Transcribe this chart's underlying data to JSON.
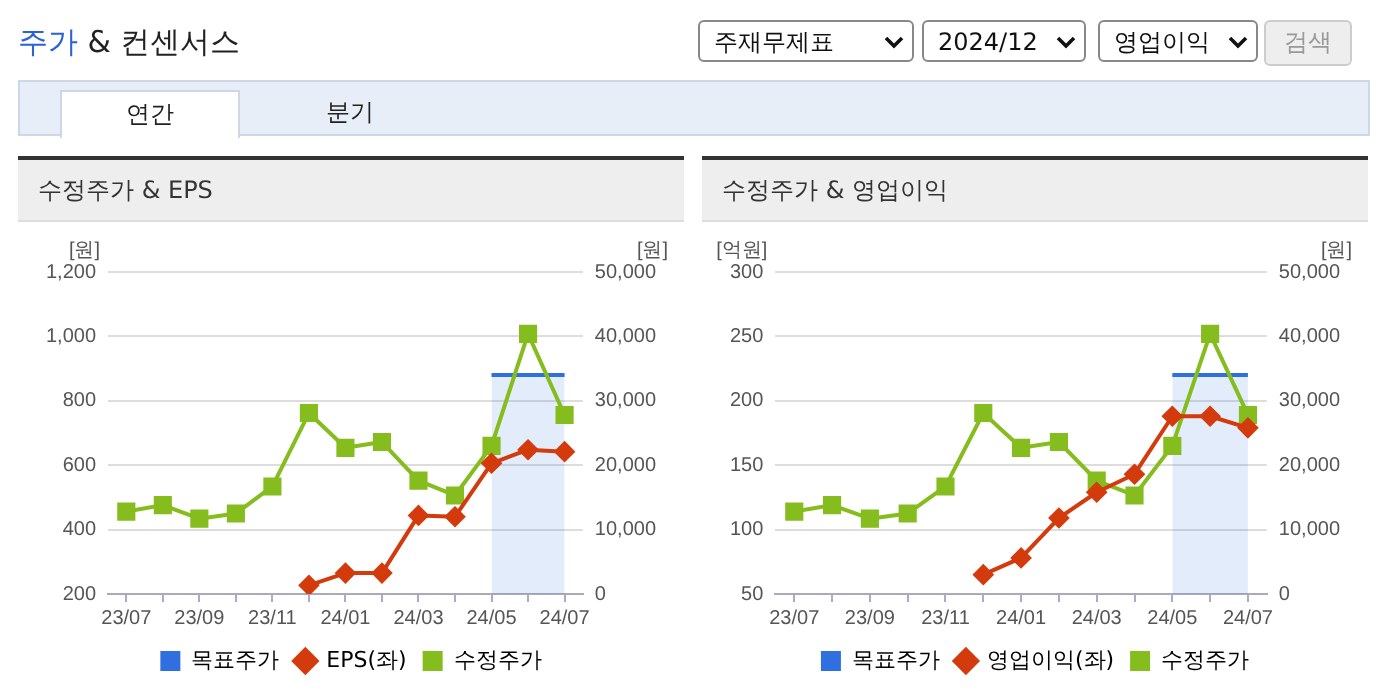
{
  "chart_data": [
    {
      "type": "other",
      "title": "주가 & 컨센서스",
      "annotations": [
        "주재무제표",
        "2024/12",
        "영업이익",
        "검색",
        "연간",
        "분기"
      ]
    },
    {
      "type": "line",
      "title": "수정주가 & EPS",
      "categories": [
        "23/07",
        null,
        "23/09",
        null,
        "23/11",
        null,
        "24/01",
        null,
        "24/03",
        null,
        "24/05",
        null,
        "24/07"
      ],
      "ylabel": "[원]",
      "y2label": "[원]",
      "ylim": [
        200,
        1200
      ],
      "yticks": [
        200,
        400,
        600,
        800,
        {
          "value": 1000,
          "label": "1,000"
        },
        {
          "value": 1200,
          "label": "1,200"
        }
      ],
      "y2lim": [
        0,
        50000
      ],
      "y2ticks": [
        0,
        {
          "value": 10000,
          "label": "10,000"
        },
        {
          "value": 20000,
          "label": "20,000"
        },
        {
          "value": 30000,
          "label": "30,000"
        },
        {
          "value": 40000,
          "label": "40,000"
        },
        {
          "value": 50000,
          "label": "50,000"
        }
      ],
      "grid": "y",
      "legend": "bottom",
      "series": [
        {
          "name": "목표주가",
          "type": "area",
          "axis": "y2",
          "color": "#2f6fdf",
          "values": [
            null,
            null,
            null,
            null,
            null,
            null,
            null,
            null,
            null,
            null,
            34000,
            34000,
            34000
          ]
        },
        {
          "name": "EPS(좌)",
          "type": "line",
          "color": "#d33a0c",
          "marker": "diamond",
          "values": [
            null,
            null,
            null,
            null,
            null,
            227,
            265,
            265,
            444,
            440,
            606,
            648,
            642
          ]
        },
        {
          "name": "수정주가",
          "type": "line",
          "axis": "y2",
          "color": "#86bd1e",
          "marker": "square",
          "values": [
            12800,
            13800,
            11700,
            12500,
            16700,
            28100,
            22700,
            23600,
            17600,
            15300,
            23000,
            40400,
            27800
          ]
        }
      ]
    },
    {
      "type": "line",
      "title": "수정주가 & 영업이익",
      "categories": [
        "23/07",
        null,
        "23/09",
        null,
        "23/11",
        null,
        "24/01",
        null,
        "24/03",
        null,
        "24/05",
        null,
        "24/07"
      ],
      "ylabel": "[억원]",
      "y2label": "[원]",
      "ylim": [
        50,
        300
      ],
      "yticks": [
        50,
        100,
        150,
        200,
        250,
        300
      ],
      "y2lim": [
        0,
        50000
      ],
      "y2ticks": [
        0,
        {
          "value": 10000,
          "label": "10,000"
        },
        {
          "value": 20000,
          "label": "20,000"
        },
        {
          "value": 30000,
          "label": "30,000"
        },
        {
          "value": 40000,
          "label": "40,000"
        },
        {
          "value": 50000,
          "label": "50,000"
        }
      ],
      "grid": "y",
      "legend": "bottom",
      "series": [
        {
          "name": "목표주가",
          "type": "area",
          "axis": "y2",
          "color": "#2f6fdf",
          "values": [
            null,
            null,
            null,
            null,
            null,
            null,
            null,
            null,
            null,
            null,
            34000,
            34000,
            34000
          ]
        },
        {
          "name": "영업이익(좌)",
          "type": "line",
          "color": "#d33a0c",
          "marker": "diamond",
          "values": [
            null,
            null,
            null,
            null,
            null,
            65,
            78,
            109,
            129,
            143,
            188,
            188,
            179
          ]
        },
        {
          "name": "수정주가",
          "type": "line",
          "axis": "y2",
          "color": "#86bd1e",
          "marker": "square",
          "values": [
            12800,
            13800,
            11700,
            12500,
            16700,
            28100,
            22700,
            23600,
            17600,
            15300,
            23000,
            40400,
            27800
          ]
        }
      ]
    }
  ]
}
